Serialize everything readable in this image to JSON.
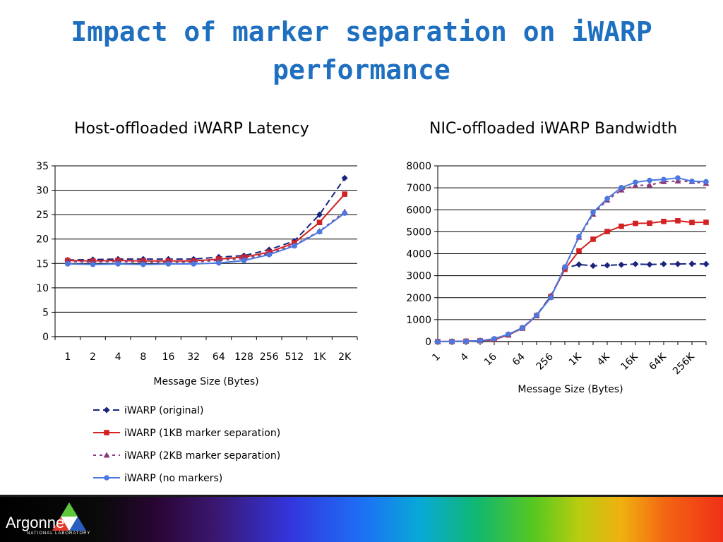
{
  "slide": {
    "title_line1": "Impact of marker separation on iWARP",
    "title_line2": "performance"
  },
  "legend": {
    "items": [
      {
        "label": "iWARP (original)",
        "color": "#1a237e",
        "marker": "diamond",
        "dash": "long"
      },
      {
        "label": "iWARP (1KB marker separation)",
        "color": "#d32020",
        "marker": "square",
        "dash": "solid"
      },
      {
        "label": "iWARP (2KB marker separation)",
        "color": "#8a3a7a",
        "marker": "triangle",
        "dash": "short"
      },
      {
        "label": "iWARP (no markers)",
        "color": "#4a78e0",
        "marker": "circle",
        "dash": "solid"
      }
    ]
  },
  "footer": {
    "logo_text": "Argonne",
    "logo_subtext": "NATIONAL LABORATORY"
  },
  "chart_data": [
    {
      "type": "line",
      "title": "Host-offloaded iWARP Latency",
      "xlabel": "Message Size (Bytes)",
      "ylabel": "",
      "categories": [
        "1",
        "2",
        "4",
        "8",
        "16",
        "32",
        "64",
        "128",
        "256",
        "512",
        "1K",
        "2K"
      ],
      "ylim": [
        0,
        35
      ],
      "yticks": [
        0,
        5,
        10,
        15,
        20,
        25,
        30,
        35
      ],
      "grid": true,
      "series": [
        {
          "name": "iWARP (original)",
          "values": [
            15.7,
            15.8,
            15.9,
            15.9,
            15.9,
            15.9,
            16.3,
            16.6,
            17.8,
            19.6,
            25.0,
            32.5
          ]
        },
        {
          "name": "iWARP (1KB marker separation)",
          "values": [
            15.6,
            15.5,
            15.6,
            15.5,
            15.5,
            15.5,
            15.9,
            16.3,
            17.3,
            19.2,
            23.4,
            29.2
          ]
        },
        {
          "name": "iWARP (2KB marker separation)",
          "values": [
            15.4,
            15.3,
            15.4,
            15.3,
            15.3,
            15.3,
            15.6,
            16.0,
            17.0,
            18.8,
            21.6,
            25.6
          ]
        },
        {
          "name": "iWARP (no markers)",
          "values": [
            14.9,
            14.8,
            14.9,
            14.8,
            14.9,
            14.9,
            15.1,
            15.6,
            16.8,
            18.6,
            21.5,
            25.3
          ]
        }
      ]
    },
    {
      "type": "line",
      "title": "NIC-offloaded iWARP Bandwidth",
      "xlabel": "Message Size (Bytes)",
      "ylabel": "",
      "x": [
        1,
        2,
        4,
        8,
        16,
        32,
        64,
        128,
        256,
        512,
        1024,
        2048,
        4096,
        8192,
        16384,
        32768,
        65536,
        131072,
        262144,
        524288
      ],
      "tick_labels": [
        "1",
        "4",
        "16",
        "64",
        "256",
        "1K",
        "4K",
        "16K",
        "64K",
        "256K"
      ],
      "ylim": [
        0,
        8000
      ],
      "yticks": [
        0,
        1000,
        2000,
        3000,
        4000,
        5000,
        6000,
        7000,
        8000
      ],
      "grid": true,
      "series": [
        {
          "name": "iWARP (original)",
          "values": [
            0,
            5,
            15,
            40,
            90,
            330,
            630,
            1200,
            2070,
            3340,
            3510,
            3450,
            3470,
            3500,
            3530,
            3510,
            3530,
            3530,
            3540,
            3530
          ]
        },
        {
          "name": "iWARP (1KB marker separation)",
          "values": [
            0,
            5,
            15,
            40,
            90,
            300,
            610,
            1180,
            2040,
            3290,
            4130,
            4660,
            5010,
            5250,
            5380,
            5390,
            5470,
            5500,
            5420,
            5430
          ]
        },
        {
          "name": "iWARP (2KB marker separation)",
          "values": [
            0,
            5,
            15,
            40,
            110,
            320,
            610,
            1180,
            2020,
            3380,
            4750,
            5800,
            6440,
            6900,
            7110,
            7120,
            7280,
            7310,
            7280,
            7200
          ]
        },
        {
          "name": "iWARP (no markers)",
          "values": [
            0,
            5,
            15,
            40,
            130,
            330,
            620,
            1200,
            2000,
            3400,
            4780,
            5880,
            6510,
            7010,
            7250,
            7340,
            7380,
            7450,
            7300,
            7280
          ]
        }
      ]
    }
  ]
}
